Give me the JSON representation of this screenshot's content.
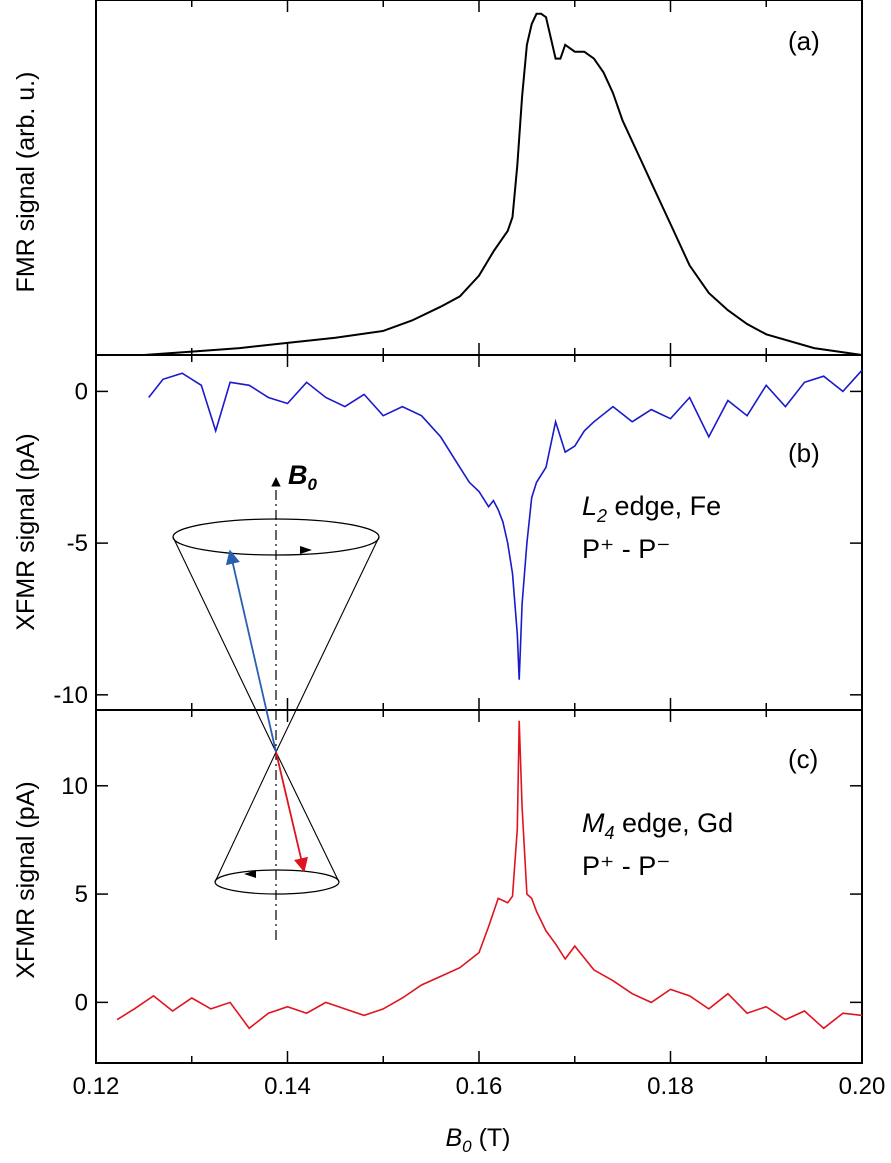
{
  "colors": {
    "fmr": "#000000",
    "fe": "#1a1acc",
    "gd": "#e0141e",
    "cone_blue": "#2a5fb0",
    "cone_red": "#e0141e"
  },
  "chart_data": [
    {
      "type": "line",
      "panel_label": "(a)",
      "ylabel": "FMR signal (arb. u.)",
      "xlim": [
        0.12,
        0.2
      ],
      "ylim": [
        0,
        1.03
      ],
      "y_ticks_shown": false,
      "series": [
        {
          "name": "FMR",
          "x": [
            0.125,
            0.13,
            0.135,
            0.14,
            0.145,
            0.15,
            0.153,
            0.156,
            0.158,
            0.16,
            0.1615,
            0.1625,
            0.163,
            0.1635,
            0.164,
            0.1645,
            0.165,
            0.1655,
            0.166,
            0.1665,
            0.167,
            0.1675,
            0.168,
            0.1685,
            0.169,
            0.1695,
            0.17,
            0.171,
            0.172,
            0.173,
            0.174,
            0.175,
            0.176,
            0.177,
            0.178,
            0.18,
            0.182,
            0.184,
            0.186,
            0.188,
            0.19,
            0.195,
            0.2
          ],
          "y": [
            0.0,
            0.01,
            0.02,
            0.035,
            0.05,
            0.07,
            0.1,
            0.14,
            0.17,
            0.23,
            0.3,
            0.34,
            0.36,
            0.4,
            0.55,
            0.75,
            0.9,
            0.96,
            0.99,
            0.99,
            0.98,
            0.92,
            0.86,
            0.86,
            0.9,
            0.89,
            0.88,
            0.88,
            0.86,
            0.82,
            0.76,
            0.68,
            0.62,
            0.56,
            0.5,
            0.38,
            0.26,
            0.18,
            0.13,
            0.09,
            0.06,
            0.02,
            0.0
          ]
        }
      ]
    },
    {
      "type": "line",
      "panel_label": "(b)",
      "ylabel": "XFMR signal (pA)",
      "xlim": [
        0.12,
        0.2
      ],
      "ylim": [
        -10.5,
        1.2
      ],
      "y_ticks": [
        0,
        -5,
        -10
      ],
      "annotation_line1_italic": "L",
      "annotation_line1_sub": "2",
      "annotation_line1_rest": " edge, Fe",
      "annotation_line2": "P⁺ - P⁻",
      "series": [
        {
          "name": "Fe L2",
          "x": [
            0.1255,
            0.127,
            0.129,
            0.131,
            0.1325,
            0.134,
            0.136,
            0.138,
            0.14,
            0.142,
            0.144,
            0.146,
            0.148,
            0.15,
            0.152,
            0.154,
            0.156,
            0.158,
            0.159,
            0.16,
            0.161,
            0.1615,
            0.162,
            0.1625,
            0.163,
            0.1635,
            0.164,
            0.1642,
            0.1645,
            0.165,
            0.1655,
            0.166,
            0.167,
            0.168,
            0.169,
            0.17,
            0.171,
            0.172,
            0.174,
            0.176,
            0.178,
            0.18,
            0.182,
            0.184,
            0.186,
            0.188,
            0.19,
            0.192,
            0.194,
            0.196,
            0.198,
            0.2
          ],
          "y": [
            -0.2,
            0.4,
            0.6,
            0.2,
            -1.3,
            0.3,
            0.2,
            -0.2,
            -0.4,
            0.3,
            -0.2,
            -0.5,
            -0.1,
            -0.8,
            -0.5,
            -0.8,
            -1.5,
            -2.5,
            -3.0,
            -3.3,
            -3.8,
            -3.6,
            -3.9,
            -4.3,
            -5.0,
            -6.0,
            -8.0,
            -9.5,
            -7.0,
            -5.0,
            -3.5,
            -3.0,
            -2.5,
            -1.0,
            -2.0,
            -1.8,
            -1.3,
            -1.0,
            -0.5,
            -1.0,
            -0.6,
            -0.9,
            -0.2,
            -1.5,
            -0.3,
            -0.8,
            0.2,
            -0.5,
            0.3,
            0.5,
            0.0,
            0.7
          ]
        }
      ]
    },
    {
      "type": "line",
      "panel_label": "(c)",
      "ylabel": "XFMR signal (pA)",
      "xlabel_italic": "B",
      "xlabel_sub": "0",
      "xlabel_rest": " (T)",
      "xlim": [
        0.12,
        0.2
      ],
      "ylim": [
        -2.8,
        13.5
      ],
      "x_ticks": [
        0.12,
        0.14,
        0.16,
        0.18,
        0.2
      ],
      "x_tick_labels": [
        "0.12",
        "0.14",
        "0.16",
        "0.18",
        "0.20"
      ],
      "y_ticks": [
        0,
        5,
        10
      ],
      "annotation_line1_italic": "M",
      "annotation_line1_sub": "4",
      "annotation_line1_rest": " edge, Gd",
      "annotation_line2": "P⁺ - P⁻",
      "series": [
        {
          "name": "Gd M4",
          "x": [
            0.1222,
            0.124,
            0.126,
            0.128,
            0.13,
            0.132,
            0.134,
            0.136,
            0.138,
            0.14,
            0.142,
            0.144,
            0.146,
            0.148,
            0.15,
            0.152,
            0.154,
            0.156,
            0.158,
            0.16,
            0.161,
            0.162,
            0.163,
            0.1635,
            0.164,
            0.1642,
            0.1645,
            0.165,
            0.1655,
            0.166,
            0.167,
            0.168,
            0.169,
            0.17,
            0.172,
            0.174,
            0.176,
            0.178,
            0.18,
            0.182,
            0.184,
            0.186,
            0.188,
            0.19,
            0.192,
            0.194,
            0.196,
            0.198,
            0.2
          ],
          "y": [
            -0.8,
            -0.3,
            0.3,
            -0.4,
            0.2,
            -0.3,
            0.0,
            -1.2,
            -0.5,
            -0.2,
            -0.5,
            0.0,
            -0.3,
            -0.6,
            -0.3,
            0.2,
            0.8,
            1.2,
            1.6,
            2.3,
            3.5,
            4.8,
            4.6,
            4.9,
            8.0,
            13.0,
            9.0,
            5.0,
            4.8,
            4.2,
            3.3,
            2.7,
            2.0,
            2.6,
            1.5,
            1.0,
            0.4,
            0.0,
            0.6,
            0.3,
            -0.3,
            0.4,
            -0.5,
            -0.2,
            -0.8,
            -0.4,
            -1.2,
            -0.5,
            -0.6
          ]
        }
      ]
    }
  ],
  "inset": {
    "field_label_italic": "B",
    "field_label_sub": "0"
  }
}
